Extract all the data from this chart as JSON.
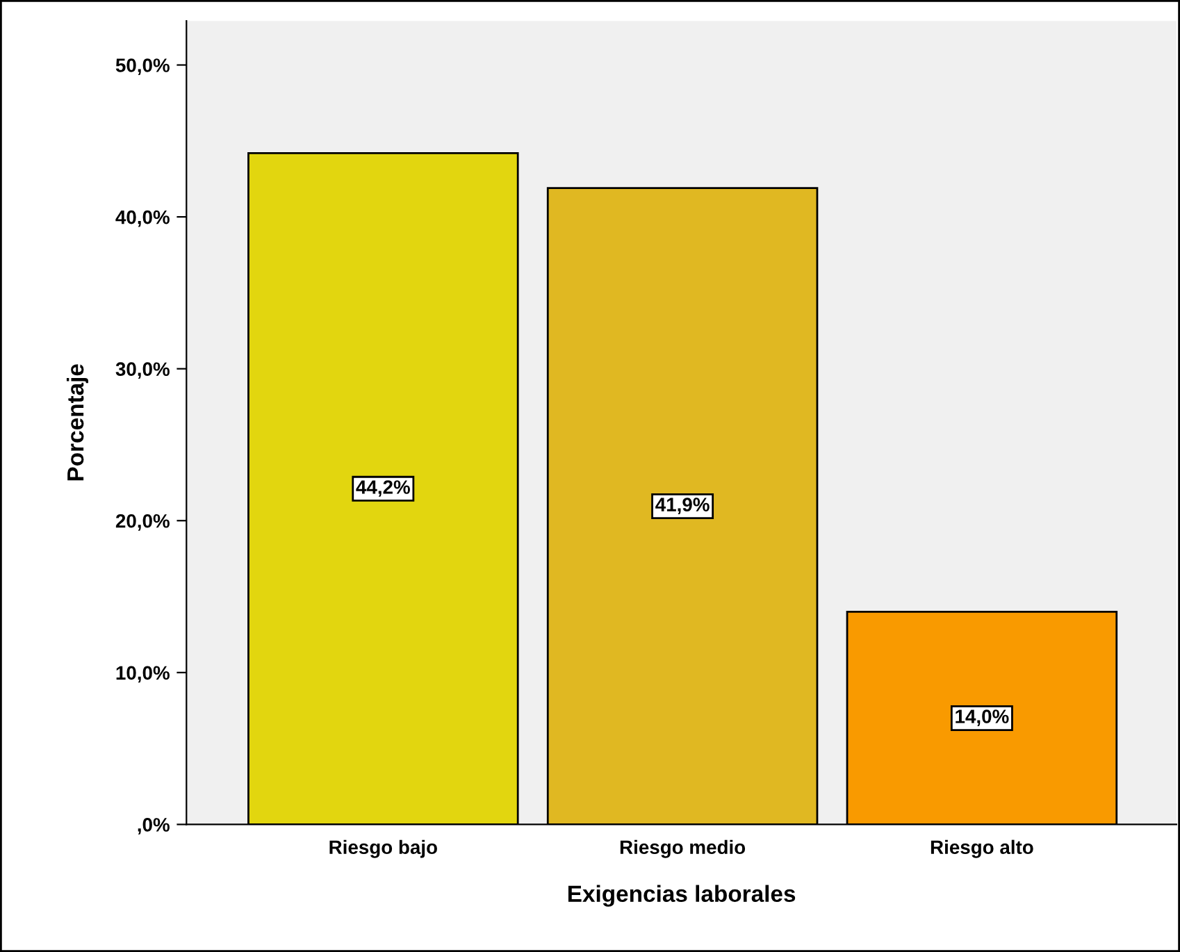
{
  "chart_data": {
    "type": "bar",
    "xlabel": "Exigencias laborales",
    "ylabel": "Porcentaje",
    "categories": [
      "Riesgo bajo",
      "Riesgo medio",
      "Riesgo alto"
    ],
    "values": [
      44.2,
      41.9,
      14.0
    ],
    "colors": [
      "#e2d60f",
      "#e0b822",
      "#f99a00"
    ],
    "value_labels": [
      "44,2%",
      "41,9%",
      "14,0%"
    ],
    "ylim": [
      0,
      52.9
    ],
    "yticks": [
      {
        "value": 0,
        "label": ",0%"
      },
      {
        "value": 10,
        "label": "10,0%"
      },
      {
        "value": 20,
        "label": "20,0%"
      },
      {
        "value": 30,
        "label": "30,0%"
      },
      {
        "value": 40,
        "label": "40,0%"
      },
      {
        "value": 50,
        "label": "50,0%"
      }
    ],
    "grid": false,
    "legend": false
  }
}
